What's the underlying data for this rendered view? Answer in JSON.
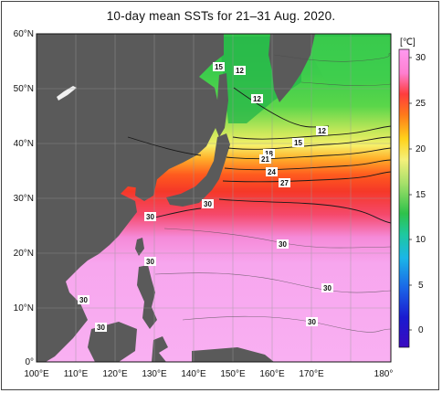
{
  "title": "10-day mean SSTs for 21–31 Aug. 2020.",
  "map": {
    "lat_labels": [
      "60°N",
      "50°N",
      "40°N",
      "30°N",
      "20°N",
      "10°N",
      "0°"
    ],
    "lon_labels": [
      "100°E",
      "110°E",
      "120°E",
      "130°E",
      "140°E",
      "150°E",
      "160°E",
      "170°E",
      "180°"
    ],
    "land_color": "#5a5a5a",
    "contour_labels": [
      "15",
      "12",
      "12",
      "12",
      "15",
      "18",
      "21",
      "24",
      "27",
      "30",
      "30",
      "30",
      "30",
      "30",
      "30",
      "30",
      "30"
    ]
  },
  "colorbar": {
    "unit": "[℃]",
    "ticks": [
      "30",
      "25",
      "20",
      "15",
      "10",
      "5",
      "0"
    ]
  }
}
